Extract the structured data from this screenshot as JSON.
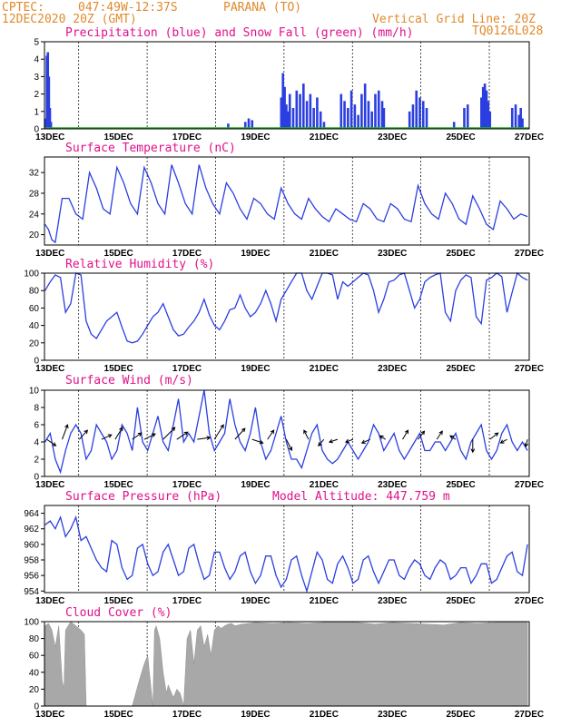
{
  "header": {
    "source": "CPTEC:",
    "coords": "047:49W-12:37S",
    "location": "PARANA (TO)",
    "datetime": "12DEC2020 20Z (GMT)",
    "grid_note": "Vertical Grid Line: 20Z",
    "code": "TQ0126L028",
    "altitude": "Model Altitude: 447.759 m"
  },
  "x_axis": {
    "start_day": 12,
    "start_hour": 20,
    "end_day": 27,
    "end_hour": 0,
    "ticks": [
      {
        "day": 13,
        "label": "13DEC"
      },
      {
        "day": 15,
        "label": "15DEC"
      },
      {
        "day": 17,
        "label": "17DEC"
      },
      {
        "day": 19,
        "label": "19DEC"
      },
      {
        "day": 21,
        "label": "21DEC"
      },
      {
        "day": 23,
        "label": "23DEC"
      },
      {
        "day": 25,
        "label": "25DEC"
      },
      {
        "day": 27,
        "label": "27DEC"
      }
    ]
  },
  "colors": {
    "header": "#e08a2c",
    "title": "#e0118a",
    "rain": "#2b3fe0",
    "snow": "#22aa22",
    "line": "#2b3fe0",
    "cloud": "#a8a8a8"
  },
  "chart_data": [
    {
      "id": "precip",
      "type": "bar",
      "title": "Precipitation (blue) and Snow Fall (green) (mm/h)",
      "ylim": [
        0,
        5
      ],
      "yticks": [
        0,
        1,
        2,
        3,
        4,
        5
      ],
      "series": [
        {
          "name": "Precipitation",
          "x_day": [
            12.85,
            12.9,
            12.93,
            12.96,
            12.99,
            13.02,
            18.2,
            18.7,
            18.8,
            18.9,
            19.75,
            19.8,
            19.85,
            19.9,
            19.95,
            20.0,
            20.1,
            20.2,
            20.3,
            20.4,
            20.5,
            20.6,
            20.7,
            20.8,
            20.9,
            21.0,
            21.5,
            21.6,
            21.7,
            21.8,
            21.9,
            22.0,
            22.1,
            22.2,
            22.3,
            22.4,
            22.5,
            22.6,
            22.7,
            22.75,
            23.5,
            23.6,
            23.7,
            23.8,
            23.9,
            24.0,
            24.8,
            25.1,
            25.2,
            25.6,
            25.65,
            25.7,
            25.75,
            25.8,
            25.85,
            26.5,
            26.6,
            26.7,
            26.75,
            26.8
          ],
          "values": [
            0.6,
            4.2,
            4.4,
            3.0,
            1.2,
            0.4,
            0.3,
            0.4,
            0.6,
            0.5,
            1.8,
            3.2,
            2.4,
            1.4,
            1.0,
            2.0,
            1.2,
            2.2,
            2.0,
            2.6,
            1.6,
            2.0,
            1.2,
            1.8,
            1.0,
            0.4,
            2.0,
            1.6,
            1.2,
            2.2,
            1.4,
            0.8,
            2.0,
            2.6,
            1.6,
            1.0,
            2.0,
            2.2,
            1.6,
            1.2,
            1.0,
            1.4,
            2.2,
            1.8,
            1.6,
            1.2,
            0.4,
            1.2,
            1.4,
            1.8,
            2.4,
            2.6,
            2.2,
            1.6,
            1.0,
            1.2,
            1.4,
            0.8,
            1.2,
            0.6
          ]
        },
        {
          "name": "Snow Fall",
          "x_day": [],
          "values": []
        }
      ]
    },
    {
      "id": "temp",
      "type": "line",
      "title": "Surface Temperature (nC)",
      "ylim": [
        18,
        35
      ],
      "yticks": [
        20,
        24,
        28,
        32
      ],
      "x_day": [
        12.85,
        12.95,
        13.05,
        13.15,
        13.35,
        13.55,
        13.75,
        13.95,
        14.15,
        14.35,
        14.55,
        14.75,
        14.95,
        15.15,
        15.35,
        15.55,
        15.75,
        15.95,
        16.15,
        16.35,
        16.55,
        16.75,
        16.95,
        17.15,
        17.35,
        17.55,
        17.75,
        17.95,
        18.15,
        18.35,
        18.55,
        18.75,
        18.95,
        19.15,
        19.35,
        19.55,
        19.75,
        19.95,
        20.15,
        20.35,
        20.55,
        20.75,
        20.95,
        21.15,
        21.35,
        21.55,
        21.75,
        21.95,
        22.15,
        22.35,
        22.55,
        22.75,
        22.95,
        23.15,
        23.35,
        23.55,
        23.75,
        23.95,
        24.15,
        24.35,
        24.55,
        24.75,
        24.95,
        25.15,
        25.35,
        25.55,
        25.75,
        25.95,
        26.15,
        26.35,
        26.55,
        26.75,
        26.95
      ],
      "values": [
        22,
        21,
        19,
        18.5,
        27,
        27,
        24,
        23,
        32,
        29,
        25,
        24,
        33,
        30,
        26,
        24,
        33,
        30,
        26,
        24,
        33.5,
        30,
        26,
        24,
        33.5,
        29,
        26,
        24,
        30,
        28,
        25,
        23,
        27,
        26,
        24,
        23,
        29,
        26,
        24,
        23,
        27,
        25,
        23.5,
        22.5,
        25,
        24,
        23,
        22.5,
        26,
        25,
        23,
        22.5,
        26,
        25,
        23,
        22.5,
        29.5,
        26,
        24,
        23,
        28,
        26,
        23,
        22,
        27.5,
        25,
        22,
        21,
        26.5,
        25,
        23,
        24,
        23.5
      ]
    },
    {
      "id": "rh",
      "type": "line",
      "title": "Relative Humidity (%)",
      "ylim": [
        0,
        100
      ],
      "yticks": [
        0,
        20,
        40,
        60,
        80,
        100
      ],
      "x_day": [
        12.85,
        13.0,
        13.15,
        13.3,
        13.45,
        13.6,
        13.75,
        13.9,
        14.05,
        14.2,
        14.35,
        14.5,
        14.65,
        14.8,
        14.95,
        15.1,
        15.25,
        15.4,
        15.55,
        15.7,
        15.85,
        16.0,
        16.15,
        16.3,
        16.45,
        16.6,
        16.75,
        16.9,
        17.05,
        17.2,
        17.35,
        17.5,
        17.65,
        17.8,
        17.95,
        18.1,
        18.25,
        18.4,
        18.55,
        18.7,
        18.85,
        19.0,
        19.15,
        19.3,
        19.45,
        19.6,
        19.75,
        19.9,
        20.05,
        20.2,
        20.35,
        20.5,
        20.65,
        20.8,
        20.95,
        21.1,
        21.25,
        21.4,
        21.55,
        21.7,
        21.85,
        22.0,
        22.15,
        22.3,
        22.45,
        22.6,
        22.75,
        22.9,
        23.05,
        23.2,
        23.35,
        23.5,
        23.65,
        23.8,
        23.95,
        24.1,
        24.25,
        24.4,
        24.55,
        24.7,
        24.85,
        25.0,
        25.15,
        25.3,
        25.45,
        25.6,
        25.75,
        25.9,
        26.05,
        26.2,
        26.35,
        26.5,
        26.65,
        26.8,
        26.95
      ],
      "values": [
        80,
        90,
        98,
        95,
        55,
        65,
        100,
        98,
        45,
        30,
        25,
        35,
        45,
        50,
        55,
        38,
        22,
        20,
        22,
        30,
        40,
        50,
        55,
        65,
        50,
        35,
        28,
        30,
        38,
        45,
        55,
        70,
        52,
        40,
        35,
        45,
        58,
        60,
        75,
        60,
        50,
        55,
        65,
        80,
        65,
        45,
        70,
        80,
        90,
        100,
        100,
        80,
        70,
        85,
        100,
        100,
        98,
        70,
        90,
        85,
        90,
        95,
        100,
        98,
        80,
        55,
        70,
        90,
        92,
        98,
        100,
        80,
        60,
        70,
        90,
        95,
        98,
        100,
        55,
        45,
        80,
        92,
        98,
        95,
        50,
        42,
        92,
        95,
        100,
        96,
        55,
        78,
        100,
        95,
        92
      ]
    },
    {
      "id": "wind",
      "type": "line",
      "title": "Surface Wind (m/s)",
      "ylim": [
        0,
        10
      ],
      "yticks": [
        0,
        2,
        4,
        6,
        8,
        10
      ],
      "x_day": [
        12.85,
        13.0,
        13.15,
        13.3,
        13.45,
        13.6,
        13.75,
        13.9,
        14.05,
        14.2,
        14.35,
        14.5,
        14.65,
        14.8,
        14.95,
        15.1,
        15.25,
        15.4,
        15.55,
        15.7,
        15.85,
        16.0,
        16.15,
        16.3,
        16.45,
        16.6,
        16.75,
        16.9,
        17.05,
        17.2,
        17.35,
        17.5,
        17.65,
        17.8,
        17.95,
        18.1,
        18.25,
        18.4,
        18.55,
        18.7,
        18.85,
        19.0,
        19.15,
        19.3,
        19.45,
        19.6,
        19.75,
        19.9,
        20.05,
        20.2,
        20.35,
        20.5,
        20.65,
        20.8,
        20.95,
        21.1,
        21.25,
        21.4,
        21.55,
        21.7,
        21.85,
        22.0,
        22.15,
        22.3,
        22.45,
        22.6,
        22.75,
        22.9,
        23.05,
        23.2,
        23.35,
        23.5,
        23.65,
        23.8,
        23.95,
        24.1,
        24.25,
        24.4,
        24.55,
        24.7,
        24.85,
        25.0,
        25.15,
        25.3,
        25.45,
        25.6,
        25.75,
        25.9,
        26.05,
        26.2,
        26.35,
        26.5,
        26.65,
        26.8,
        26.95
      ],
      "values": [
        4,
        5,
        2,
        0.5,
        3,
        5,
        6,
        5,
        2,
        3,
        6,
        5,
        4,
        2,
        3,
        6,
        5,
        3,
        8,
        4,
        3,
        5,
        7,
        4,
        3,
        6,
        9,
        4,
        5,
        4,
        7,
        10,
        5,
        3,
        4,
        5,
        9,
        6,
        4,
        3,
        5,
        8,
        4,
        2,
        3,
        5,
        7,
        4,
        2,
        2,
        1,
        3,
        5,
        6,
        3,
        2,
        1.5,
        2,
        3,
        4,
        3,
        2,
        3,
        4,
        6,
        5,
        3,
        4,
        5,
        3,
        2,
        3,
        4,
        5,
        3,
        3,
        4,
        4,
        3,
        4,
        5,
        3,
        2,
        4,
        5,
        6,
        3,
        2,
        3,
        5,
        6,
        4,
        3,
        4,
        3
      ],
      "vectors": [
        {
          "day": 12.9,
          "dx": 10,
          "dy": 7
        },
        {
          "day": 13.35,
          "dx": 6,
          "dy": -16
        },
        {
          "day": 13.85,
          "dx": 9,
          "dy": -10
        },
        {
          "day": 14.5,
          "dx": 11,
          "dy": -5
        },
        {
          "day": 14.9,
          "dx": 8,
          "dy": -13
        },
        {
          "day": 15.4,
          "dx": 10,
          "dy": -7
        },
        {
          "day": 15.75,
          "dx": 12,
          "dy": -6
        },
        {
          "day": 16.3,
          "dx": 13,
          "dy": -13
        },
        {
          "day": 16.7,
          "dx": 12,
          "dy": -8
        },
        {
          "day": 17.3,
          "dx": 14,
          "dy": -2
        },
        {
          "day": 17.8,
          "dx": 10,
          "dy": -16
        },
        {
          "day": 18.4,
          "dx": 11,
          "dy": -12
        },
        {
          "day": 18.9,
          "dx": 12,
          "dy": 4
        },
        {
          "day": 19.35,
          "dx": 7,
          "dy": -10
        },
        {
          "day": 19.9,
          "dx": 6,
          "dy": 12
        },
        {
          "day": 20.55,
          "dx": -5,
          "dy": -10
        },
        {
          "day": 21.0,
          "dx": -6,
          "dy": 7
        },
        {
          "day": 21.4,
          "dx": -9,
          "dy": 3
        },
        {
          "day": 21.85,
          "dx": -8,
          "dy": 3
        },
        {
          "day": 22.35,
          "dx": -9,
          "dy": 4
        },
        {
          "day": 22.8,
          "dx": -6,
          "dy": -4
        },
        {
          "day": 23.3,
          "dx": 6,
          "dy": -10
        },
        {
          "day": 23.75,
          "dx": 7,
          "dy": -9
        },
        {
          "day": 24.3,
          "dx": 6,
          "dy": -9
        },
        {
          "day": 24.85,
          "dx": -6,
          "dy": -4
        },
        {
          "day": 25.35,
          "dx": 0,
          "dy": 14
        },
        {
          "day": 25.85,
          "dx": 9,
          "dy": -7
        },
        {
          "day": 26.35,
          "dx": -7,
          "dy": 4
        },
        {
          "day": 26.95,
          "dx": -2,
          "dy": 8
        }
      ]
    },
    {
      "id": "pressure",
      "type": "line",
      "title": "Surface Pressure (hPa)",
      "ylim": [
        953.8,
        965
      ],
      "yticks": [
        954,
        956,
        958,
        960,
        962,
        964
      ],
      "x_day": [
        12.85,
        13.0,
        13.15,
        13.3,
        13.45,
        13.6,
        13.75,
        13.9,
        14.05,
        14.2,
        14.35,
        14.5,
        14.65,
        14.8,
        14.95,
        15.1,
        15.25,
        15.4,
        15.55,
        15.7,
        15.85,
        16.0,
        16.15,
        16.3,
        16.45,
        16.6,
        16.75,
        16.9,
        17.05,
        17.2,
        17.35,
        17.5,
        17.65,
        17.8,
        17.95,
        18.1,
        18.25,
        18.4,
        18.55,
        18.7,
        18.85,
        19.0,
        19.15,
        19.3,
        19.45,
        19.6,
        19.75,
        19.9,
        20.05,
        20.2,
        20.35,
        20.5,
        20.65,
        20.8,
        20.95,
        21.1,
        21.25,
        21.4,
        21.55,
        21.7,
        21.85,
        22.0,
        22.15,
        22.3,
        22.45,
        22.6,
        22.75,
        22.9,
        23.05,
        23.2,
        23.35,
        23.5,
        23.65,
        23.8,
        23.95,
        24.1,
        24.25,
        24.4,
        24.55,
        24.7,
        24.85,
        25.0,
        25.15,
        25.3,
        25.45,
        25.6,
        25.75,
        25.9,
        26.05,
        26.2,
        26.35,
        26.5,
        26.65,
        26.8,
        26.95
      ],
      "values": [
        962.5,
        963,
        962,
        963.5,
        961,
        962,
        963.5,
        960.5,
        961,
        959.5,
        958,
        957,
        956.5,
        960.5,
        960,
        957,
        955.5,
        956,
        959.5,
        960,
        957.5,
        956,
        956.5,
        959,
        960,
        958,
        956,
        956.5,
        959.5,
        960,
        957.5,
        955.5,
        956,
        959,
        959,
        957,
        955.5,
        956.5,
        958.5,
        959,
        956.5,
        955,
        956,
        958.5,
        958.5,
        956,
        954.5,
        955.5,
        958,
        958.5,
        956,
        954,
        956.5,
        959,
        958,
        955.5,
        955,
        957.5,
        958.5,
        957,
        955,
        955.5,
        958,
        958.5,
        956.5,
        955,
        956.5,
        958,
        958,
        956,
        955.5,
        957,
        958,
        957.5,
        956,
        955.5,
        957,
        958,
        957.5,
        955.5,
        956,
        957,
        957,
        955,
        956,
        957.5,
        957.5,
        955,
        955.5,
        957,
        958.5,
        959,
        956.5,
        956,
        960
      ]
    },
    {
      "id": "cloud",
      "type": "area",
      "title": "Cloud Cover (%)",
      "ylim": [
        0,
        100
      ],
      "yticks": [
        0,
        20,
        40,
        60,
        80,
        100
      ],
      "x_day": [
        12.85,
        12.95,
        13.05,
        13.15,
        13.25,
        13.35,
        13.4,
        13.45,
        13.6,
        13.75,
        13.9,
        14.0,
        14.05,
        14.3,
        14.6,
        14.9,
        15.2,
        15.4,
        15.6,
        15.75,
        15.85,
        15.95,
        16.0,
        16.05,
        16.1,
        16.2,
        16.3,
        16.4,
        16.45,
        16.6,
        16.7,
        16.8,
        16.9,
        17.0,
        17.1,
        17.15,
        17.2,
        17.3,
        17.4,
        17.5,
        17.6,
        17.7,
        17.8,
        17.9,
        18.0,
        18.1,
        18.2,
        18.3,
        18.4,
        18.6,
        18.8,
        19.0,
        19.5,
        20.0,
        20.5,
        21.0,
        21.5,
        22.0,
        22.5,
        23.0,
        23.5,
        24.0,
        24.5,
        25.0,
        25.5,
        26.0,
        26.5,
        26.95
      ],
      "values": [
        95,
        98,
        90,
        70,
        95,
        30,
        20,
        90,
        100,
        95,
        90,
        85,
        0,
        0,
        0,
        0,
        0,
        0,
        30,
        50,
        60,
        20,
        0,
        90,
        95,
        80,
        40,
        15,
        25,
        10,
        20,
        15,
        0,
        80,
        90,
        70,
        50,
        90,
        95,
        70,
        85,
        60,
        90,
        95,
        92,
        95,
        97,
        98,
        95,
        97,
        98,
        99,
        98,
        99,
        98,
        99,
        99,
        99,
        97,
        99,
        98,
        97,
        96,
        99,
        98,
        99,
        99,
        99
      ]
    }
  ]
}
